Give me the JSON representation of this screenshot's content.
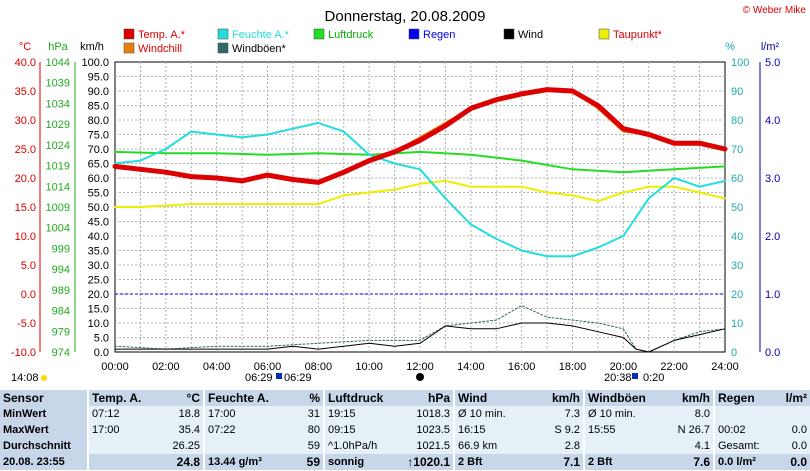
{
  "header": {
    "title": "Donnerstag, 20.08.2009",
    "credit": "© Weber Mike",
    "clock_left": "14:08",
    "sunrise": "06:29",
    "sunset": "20:38",
    "daylength": "0:20",
    "sunrise_b": "06:29"
  },
  "colors": {
    "temp": "#dd0000",
    "windchill": "#e88010",
    "humidity": "#22dddd",
    "windgust": "#336666",
    "pressure": "#22dd22",
    "rain": "#0000ee",
    "wind": "#000000",
    "dewpoint": "#eeee00",
    "grid": "#b0b0b0",
    "axis_temp": "#dd0000",
    "axis_hpa": "#22aa22",
    "axis_pct": "#22aaaa",
    "axis_rain": "#0000aa"
  },
  "chart_data": {
    "type": "line",
    "x_ticks": [
      "00:00",
      "02:00",
      "04:00",
      "06:00",
      "08:00",
      "10:00",
      "12:00",
      "14:00",
      "16:00",
      "18:00",
      "20:00",
      "22:00",
      "24:00"
    ],
    "axes": {
      "temp_c": {
        "label": "°C",
        "ticks": [
          "40.0",
          "35.0",
          "30.0",
          "25.0",
          "20.0",
          "15.0",
          "10.0",
          "5.0",
          "0.0",
          "-5.0",
          "-10.0"
        ],
        "range": [
          -10,
          40
        ]
      },
      "hpa": {
        "label": "hPa",
        "ticks": [
          "1044",
          "1039",
          "1034",
          "1029",
          "1024",
          "1019",
          "1014",
          "1009",
          "1004",
          "999",
          "994",
          "989",
          "984",
          "979",
          "974"
        ],
        "range": [
          974,
          1044
        ]
      },
      "kmh": {
        "label": "km/h",
        "ticks": [
          "100.0",
          "95.0",
          "90.0",
          "85.0",
          "80.0",
          "75.0",
          "70.0",
          "65.0",
          "60.0",
          "55.0",
          "50.0",
          "45.0",
          "40.0",
          "35.0",
          "30.0",
          "25.0",
          "20.0",
          "15.0",
          "10.0",
          "5.0",
          "0.0"
        ],
        "range": [
          0,
          100
        ]
      },
      "pct": {
        "label": "%",
        "ticks": [
          "100",
          "90",
          "80",
          "70",
          "60",
          "50",
          "40",
          "30",
          "20",
          "10",
          "0"
        ],
        "range": [
          0,
          100
        ]
      },
      "rain": {
        "label": "l/m²",
        "ticks": [
          "5.0",
          "4.0",
          "3.0",
          "2.0",
          "1.0",
          "0.0"
        ],
        "range": [
          0,
          5
        ]
      }
    },
    "legend": [
      {
        "key": "temp",
        "label": "Temp. A.*"
      },
      {
        "key": "humidity",
        "label": "Feuchte A.*"
      },
      {
        "key": "pressure",
        "label": "Luftdruck"
      },
      {
        "key": "rain",
        "label": "Regen"
      },
      {
        "key": "wind",
        "label": "Wind"
      },
      {
        "key": "dewpoint",
        "label": "Taupunkt*"
      },
      {
        "key": "windchill",
        "label": "Windchill"
      },
      {
        "key": "windgust",
        "label": "Windböen*"
      }
    ],
    "series": [
      {
        "key": "temp",
        "name": "Temp. A.*",
        "axis": "kmh",
        "x": [
          0,
          1,
          2,
          3,
          4,
          5,
          6,
          7,
          8,
          9,
          10,
          11,
          12,
          13,
          14,
          15,
          16,
          17,
          18,
          19,
          20,
          21,
          22,
          23,
          24
        ],
        "y": [
          64,
          63,
          62,
          60.5,
          60,
          59,
          61,
          59.5,
          58.5,
          62,
          66,
          69,
          73,
          78,
          84,
          87,
          89,
          90.5,
          90,
          85,
          77,
          75,
          72,
          72,
          70
        ]
      },
      {
        "key": "windchill",
        "name": "Windchill",
        "axis": "kmh",
        "x": [
          0,
          1,
          2,
          3,
          4,
          5,
          6,
          7,
          8,
          9,
          10,
          11,
          12,
          13,
          14,
          15,
          16,
          17,
          18,
          19,
          20,
          21,
          22,
          23,
          24
        ],
        "y": [
          64,
          63,
          62,
          60.5,
          60,
          59,
          61,
          59.5,
          58.5,
          62,
          66,
          69,
          74,
          79,
          84,
          87,
          89,
          90.5,
          90,
          84,
          76,
          75,
          72,
          72,
          70
        ]
      },
      {
        "key": "humidity",
        "name": "Feuchte A.*",
        "axis": "pct",
        "x": [
          0,
          1,
          2,
          3,
          4,
          5,
          6,
          7,
          8,
          9,
          10,
          11,
          12,
          13,
          14,
          15,
          16,
          17,
          18,
          19,
          20,
          21,
          22,
          23,
          24
        ],
        "y": [
          65,
          66,
          70,
          76,
          75,
          74,
          75,
          77,
          79,
          76,
          68,
          65,
          63,
          53,
          44,
          39,
          35,
          33,
          33,
          36,
          40,
          53,
          60,
          57,
          59
        ]
      },
      {
        "key": "pressure",
        "name": "Luftdruck",
        "axis": "pct",
        "x": [
          0,
          2,
          4,
          6,
          8,
          10,
          12,
          14,
          16,
          18,
          20,
          22,
          24
        ],
        "y": [
          69,
          68.5,
          68.5,
          68,
          68.5,
          68,
          69,
          68,
          66,
          63,
          62,
          63,
          64
        ]
      },
      {
        "key": "dewpoint",
        "name": "Taupunkt*",
        "axis": "pct",
        "x": [
          0,
          1,
          2,
          3,
          4,
          5,
          6,
          7,
          8,
          9,
          10,
          11,
          12,
          13,
          14,
          15,
          16,
          17,
          18,
          19,
          20,
          21,
          22,
          23,
          24
        ],
        "y": [
          50,
          50,
          50.5,
          51,
          51,
          51,
          51,
          51,
          51,
          54,
          55,
          56,
          58,
          59,
          57,
          57,
          57,
          55,
          54,
          52,
          55,
          57,
          57,
          55,
          53
        ]
      },
      {
        "key": "wind",
        "name": "Wind",
        "axis": "kmh",
        "x": [
          0,
          1,
          2,
          3,
          4,
          5,
          6,
          7,
          8,
          9,
          10,
          11,
          12,
          12.5,
          13,
          14,
          15,
          16,
          17,
          18,
          19,
          20,
          20.5,
          21,
          22,
          23,
          24
        ],
        "y": [
          1,
          1,
          1,
          1,
          1,
          1,
          1,
          2,
          1,
          2,
          3,
          2,
          3,
          6,
          9,
          8,
          8,
          10,
          10,
          9,
          7,
          5,
          1,
          0,
          4,
          6,
          8
        ]
      },
      {
        "key": "windgust",
        "name": "Windböen*",
        "axis": "kmh",
        "x": [
          0,
          2,
          4,
          6,
          8,
          10,
          12,
          13,
          14,
          15,
          16,
          17,
          18,
          19,
          20,
          20.5,
          21,
          22,
          23,
          24
        ],
        "y": [
          2,
          1,
          2,
          2,
          3,
          4,
          4,
          9,
          10,
          11,
          16,
          12,
          11,
          10,
          8,
          1,
          0,
          4,
          7,
          8
        ]
      }
    ]
  },
  "table": {
    "headers": [
      "Sensor",
      "Temp. A.",
      "°C",
      "Feuchte A.",
      "%",
      "Luftdruck",
      "hPa",
      "Wind",
      "km/h",
      "Windböen",
      "km/h",
      "Regen",
      "l/m²"
    ],
    "rows": [
      {
        "label": "MinWert",
        "cells": [
          "07:12",
          "18.8",
          "17:00",
          "31",
          "19:15",
          "1018.3",
          "Ø 10 min.",
          "7.3",
          "Ø 10 min.",
          "8.0",
          "",
          ""
        ]
      },
      {
        "label": "MaxWert",
        "cells": [
          "17:00",
          "35.4",
          "07:22",
          "80",
          "09:15",
          "1023.5",
          "16:15",
          "S 9.2",
          "15:55",
          "N 26.7",
          "00:02",
          "0.0"
        ]
      },
      {
        "label": "Durchschnitt",
        "cells": [
          "",
          "26.25",
          "",
          "59",
          "^1.0hPa/h",
          "1021.5",
          "66.9 km",
          "2.8",
          "",
          "4.1",
          "Gesamt:",
          "0.0"
        ]
      }
    ],
    "footer": {
      "label": "20.08. 23:55",
      "cells": [
        "",
        "24.8",
        "13.44 g/m³",
        "59",
        "sonnig",
        "↑1020.1",
        "2 Bft",
        "7.1",
        "2 Bft",
        "7.6",
        "0.0 l/m²",
        "0.0"
      ]
    }
  }
}
